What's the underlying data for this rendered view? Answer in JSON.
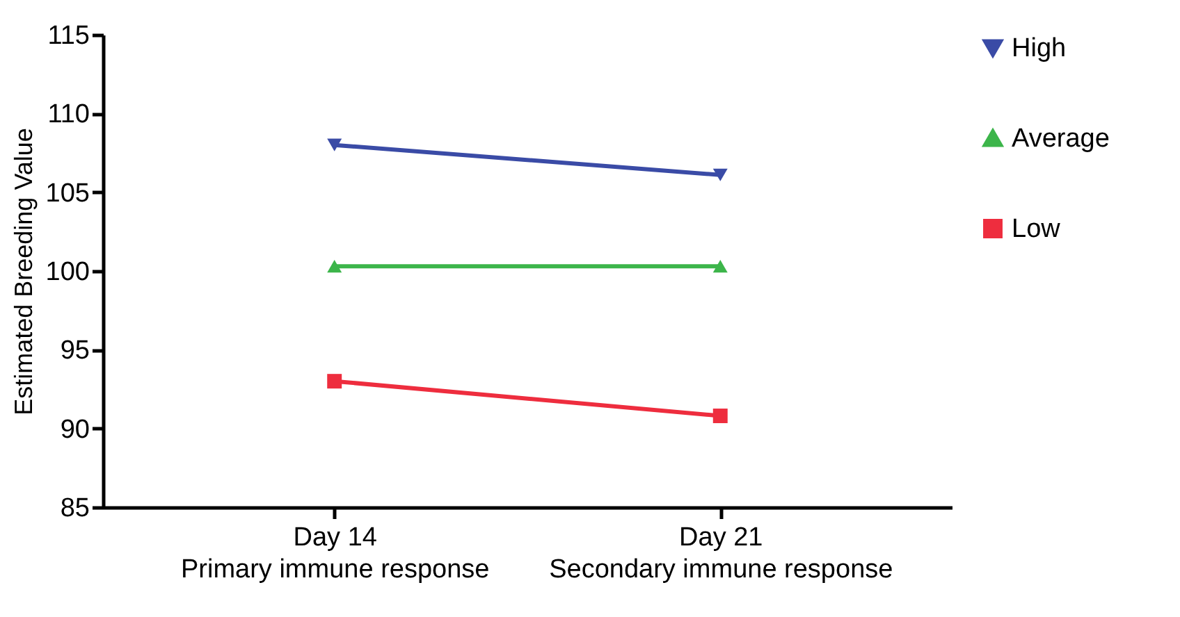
{
  "chart_data": {
    "type": "line",
    "ylabel": "Estimated Breeding Value",
    "categories": [
      "Day 14\nPrimary immune response",
      "Day 21\nSecondary immune response"
    ],
    "series": [
      {
        "name": "High",
        "color": "#3a4ba6",
        "marker": "triangle-down",
        "values": [
          108.0,
          106.1
        ]
      },
      {
        "name": "Average",
        "color": "#3cb54a",
        "marker": "triangle-up",
        "values": [
          100.3,
          100.3
        ]
      },
      {
        "name": "Low",
        "color": "#ee2d3e",
        "marker": "square",
        "values": [
          93.0,
          90.8
        ]
      }
    ],
    "ylim": [
      85,
      115
    ],
    "yticks": [
      85,
      90,
      95,
      100,
      105,
      110,
      115
    ],
    "grid": false,
    "legend": "right",
    "line_style": "solid"
  }
}
